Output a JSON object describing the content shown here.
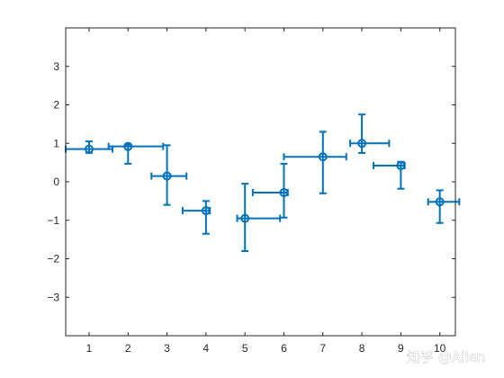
{
  "watermark": "知乎 @Alien",
  "chart_data": {
    "type": "scatter",
    "title": "",
    "xlabel": "",
    "ylabel": "",
    "xlim": [
      0.4,
      10.4
    ],
    "ylim": [
      -4,
      4
    ],
    "xticks": [
      1,
      2,
      3,
      4,
      5,
      6,
      7,
      8,
      9,
      10
    ],
    "yticks": [
      -3,
      -2,
      -1,
      0,
      1,
      2,
      3
    ],
    "grid": false,
    "legend": "none",
    "color": "#0072BD",
    "marker": "circle",
    "series": [
      {
        "points": [
          {
            "x": 1,
            "y": 0.85,
            "xneg": 0.6,
            "xpos": 0.6,
            "yneg": 0.1,
            "ypos": 0.2
          },
          {
            "x": 2,
            "y": 0.92,
            "xneg": 0.5,
            "xpos": 0.9,
            "yneg": 0.45,
            "ypos": 0.05
          },
          {
            "x": 3,
            "y": 0.15,
            "xneg": 0.4,
            "xpos": 0.5,
            "yneg": 0.75,
            "ypos": 0.8
          },
          {
            "x": 4,
            "y": -0.75,
            "xneg": 0.6,
            "xpos": 0.1,
            "yneg": 0.6,
            "ypos": 0.25
          },
          {
            "x": 5,
            "y": -0.95,
            "xneg": 0.2,
            "xpos": 0.9,
            "yneg": 0.85,
            "ypos": 0.9
          },
          {
            "x": 6,
            "y": -0.28,
            "xneg": 0.8,
            "xpos": 0.1,
            "yneg": 0.65,
            "ypos": 0.75
          },
          {
            "x": 7,
            "y": 0.65,
            "xneg": 1.0,
            "xpos": 0.6,
            "yneg": 0.95,
            "ypos": 0.65
          },
          {
            "x": 8,
            "y": 1.0,
            "xneg": 0.3,
            "xpos": 0.7,
            "yneg": 0.25,
            "ypos": 0.75
          },
          {
            "x": 9,
            "y": 0.42,
            "xneg": 0.7,
            "xpos": 0.1,
            "yneg": 0.6,
            "ypos": 0.1
          },
          {
            "x": 10,
            "y": -0.52,
            "xneg": 0.3,
            "xpos": 0.5,
            "yneg": 0.55,
            "ypos": 0.3
          }
        ]
      }
    ]
  }
}
